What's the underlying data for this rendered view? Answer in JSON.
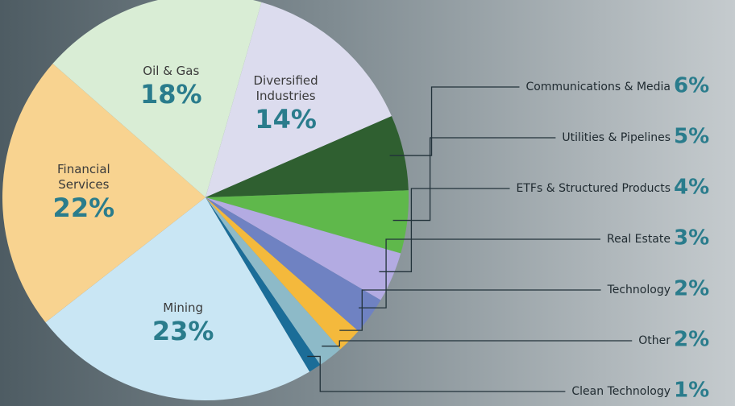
{
  "chart_data": {
    "type": "pie",
    "categories": [
      "Diversified Industries",
      "Communications & Media",
      "Utilities & Pipelines",
      "ETFs & Structured Products",
      "Real Estate",
      "Technology",
      "Other",
      "Clean Technology",
      "Mining",
      "Financial Services",
      "Oil & Gas"
    ],
    "values": [
      14,
      6,
      5,
      4,
      3,
      2,
      2,
      1,
      23,
      22,
      18
    ],
    "value_labels": [
      "14%",
      "6%",
      "5%",
      "4%",
      "3%",
      "2%",
      "2%",
      "1%",
      "23%",
      "22%",
      "18%"
    ],
    "colors": [
      "#dcdcee",
      "#2f5f30",
      "#5fb84b",
      "#b3abe2",
      "#6f82c2",
      "#f4b93c",
      "#8dbac8",
      "#1b6d98",
      "#c9e6f4",
      "#f8d390",
      "#d9edd5"
    ]
  }
}
